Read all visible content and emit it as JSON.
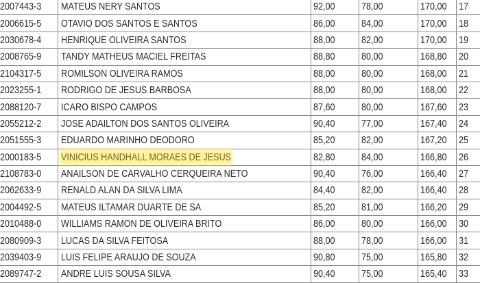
{
  "highlight_color": "#ffec78",
  "highlighted_row": 9,
  "rows": [
    {
      "id": "2007443-3",
      "name": "MATEUS NERY SANTOS",
      "score1": "92,00",
      "score2": "78,00",
      "total": "170,00",
      "rank": "17"
    },
    {
      "id": "2006615-5",
      "name": "OTAVIO DOS SANTOS E SANTOS",
      "score1": "86,00",
      "score2": "84,00",
      "total": "170,00",
      "rank": "18"
    },
    {
      "id": "2030678-4",
      "name": "HENRIQUE OLIVEIRA SANTOS",
      "score1": "88,00",
      "score2": "82,00",
      "total": "170,00",
      "rank": "19"
    },
    {
      "id": "2008765-9",
      "name": "TANDY MATHEUS MACIEL FREITAS",
      "score1": "88,80",
      "score2": "80,00",
      "total": "168,80",
      "rank": "20"
    },
    {
      "id": "2104317-5",
      "name": "ROMILSON OLIVEIRA RAMOS",
      "score1": "88,00",
      "score2": "80,00",
      "total": "168,00",
      "rank": "21"
    },
    {
      "id": "2023255-1",
      "name": "RODRIGO DE JESUS BARBOSA",
      "score1": "88,00",
      "score2": "80,00",
      "total": "168,00",
      "rank": "22"
    },
    {
      "id": "2088120-7",
      "name": "ICARO BISPO CAMPOS",
      "score1": "87,60",
      "score2": "80,00",
      "total": "167,60",
      "rank": "23"
    },
    {
      "id": "2055212-2",
      "name": "JOSE ADAILTON DOS SANTOS OLIVEIRA",
      "score1": "90,40",
      "score2": "77,00",
      "total": "167,40",
      "rank": "24"
    },
    {
      "id": "2051555-3",
      "name": "EDUARDO MARINHO DEODORO",
      "score1": "85,20",
      "score2": "82,00",
      "total": "167,20",
      "rank": "25"
    },
    {
      "id": "2000183-5",
      "name": "VINICIUS HANDHALL MORAES DE JESUS",
      "score1": "82,80",
      "score2": "84,00",
      "total": "166,80",
      "rank": "26"
    },
    {
      "id": "2108783-0",
      "name": "ANAILSON DE CARVALHO CERQUEIRA NETO",
      "score1": "90,40",
      "score2": "76,00",
      "total": "166,40",
      "rank": "27"
    },
    {
      "id": "2062633-9",
      "name": "RENALD ALAN DA SILVA LIMA",
      "score1": "84,40",
      "score2": "82,00",
      "total": "166,40",
      "rank": "28"
    },
    {
      "id": "2004492-5",
      "name": "MATEUS ILTAMAR DUARTE DE SA",
      "score1": "85,20",
      "score2": "81,00",
      "total": "166,20",
      "rank": "29"
    },
    {
      "id": "2010488-0",
      "name": "WILLIAMS RAMON DE OLIVEIRA BRITO",
      "score1": "86,00",
      "score2": "80,00",
      "total": "166,00",
      "rank": "30"
    },
    {
      "id": "2080909-3",
      "name": "LUCAS DA SILVA FEITOSA",
      "score1": "88,00",
      "score2": "78,00",
      "total": "166,00",
      "rank": "31"
    },
    {
      "id": "2039403-9",
      "name": "LUIS FELIPE ARAUJO DE SOUZA",
      "score1": "90,80",
      "score2": "75,00",
      "total": "165,80",
      "rank": "32"
    },
    {
      "id": "2089747-2",
      "name": "ANDRE LUIS SOUSA SILVA",
      "score1": "90,40",
      "score2": "75,00",
      "total": "165,40",
      "rank": "33"
    }
  ]
}
